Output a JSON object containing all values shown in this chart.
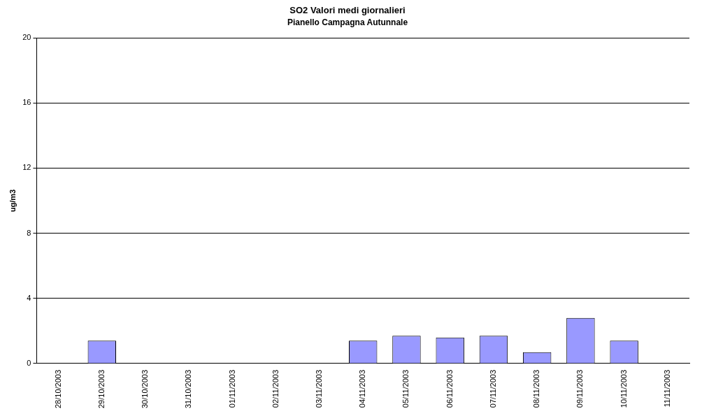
{
  "chart_data": {
    "type": "bar",
    "title": "SO2 Valori medi giornalieri",
    "subtitle": "Pianello Campagna Autunnale",
    "ylabel": "ug/m3",
    "categories": [
      "28/10/2003",
      "29/10/2003",
      "30/10/2003",
      "31/10/2003",
      "01/11/2003",
      "02/11/2003",
      "03/11/2003",
      "04/11/2003",
      "05/11/2003",
      "06/11/2003",
      "07/11/2003",
      "08/11/2003",
      "09/11/2003",
      "10/11/2003",
      "11/11/2003"
    ],
    "values": [
      null,
      1.4,
      null,
      null,
      null,
      null,
      null,
      1.4,
      1.7,
      1.6,
      1.7,
      0.7,
      2.8,
      1.4,
      null
    ],
    "color": "#9999ff",
    "ylim": [
      0,
      20
    ],
    "yticks": [
      0,
      4,
      8,
      12,
      16,
      20
    ],
    "grid": "y",
    "legend": false
  }
}
